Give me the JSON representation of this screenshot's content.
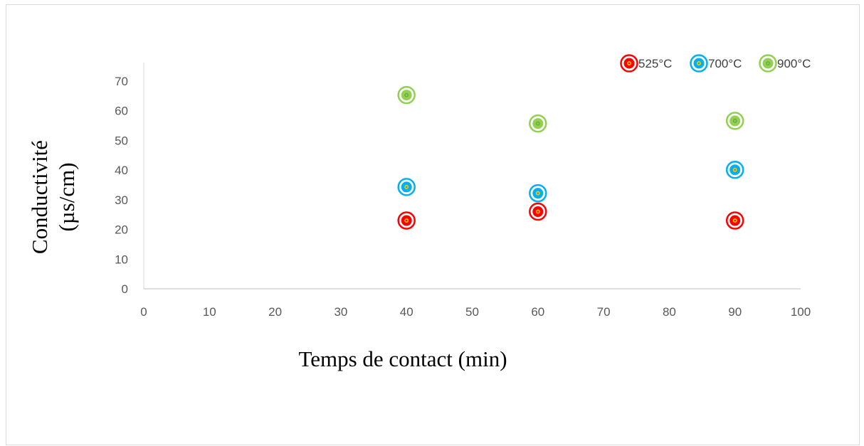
{
  "chart_data": {
    "type": "scatter",
    "title": "",
    "xlabel": "Temps de contact (min)",
    "ylabel_lines": [
      "Conductivité",
      "(µs/cm)"
    ],
    "xlim": [
      0,
      100
    ],
    "ylim": [
      0,
      70
    ],
    "x_ticks": [
      "0",
      "10",
      "20",
      "30",
      "40",
      "50",
      "60",
      "70",
      "80",
      "90",
      "100"
    ],
    "y_ticks": [
      "0",
      "10",
      "20",
      "30",
      "40",
      "50",
      "60",
      "70"
    ],
    "grid": false,
    "legend_position": "top-right",
    "series": [
      {
        "name": "525°C",
        "color": "#ff0000",
        "inner_color": "#ffc000",
        "x": [
          40,
          60,
          90
        ],
        "y": [
          23,
          26,
          23
        ]
      },
      {
        "name": "700°C",
        "color": "#00b0f0",
        "inner_color": "#ffc000",
        "x": [
          40,
          60,
          90
        ],
        "y": [
          34.3,
          32.2,
          40.1
        ]
      },
      {
        "name": "900°C",
        "color": "#92d050",
        "inner_color": "#70ad47",
        "x": [
          40,
          60,
          90
        ],
        "y": [
          65.3,
          55.7,
          56.6
        ]
      }
    ]
  }
}
